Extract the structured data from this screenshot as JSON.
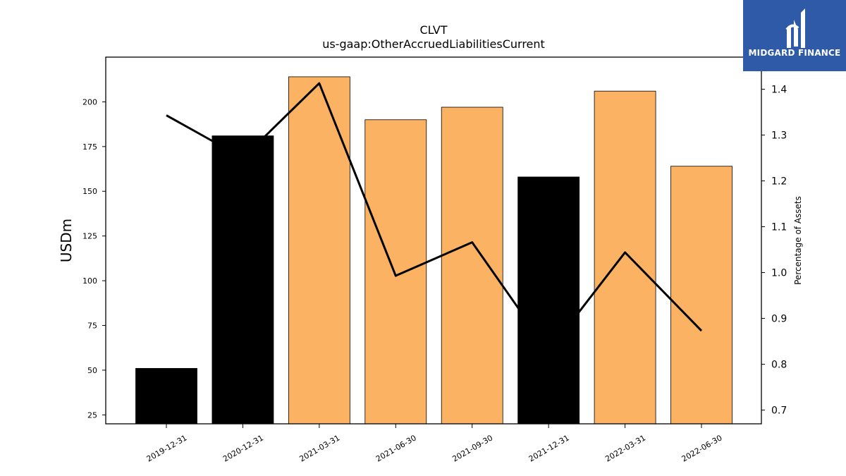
{
  "chart_data": {
    "type": "bar",
    "title": "CLVT",
    "subtitle": "us-gaap:OtherAccruedLiabilitiesCurrent",
    "ylabel": "USDm",
    "y2label": "Percentage of Assets",
    "categories": [
      "2019-12-31",
      "2020-12-31",
      "2021-03-31",
      "2021-06-30",
      "2021-09-30",
      "2021-12-31",
      "2022-03-31",
      "2022-06-30"
    ],
    "series": [
      {
        "type": "bar",
        "axis": "left",
        "values": [
          51,
          181,
          214,
          190,
          197,
          158,
          206,
          164
        ],
        "colors": [
          "#000000",
          "#000000",
          "#fbb263",
          "#fbb263",
          "#fbb263",
          "#000000",
          "#fbb263",
          "#fbb263"
        ]
      },
      {
        "type": "line",
        "axis": "right",
        "color": "#000000",
        "values": [
          1.343,
          1.25,
          1.413,
          0.993,
          1.066,
          0.828,
          1.044,
          0.873
        ]
      }
    ],
    "ylim": [
      20,
      225
    ],
    "y2lim": [
      0.67,
      1.47
    ],
    "yticks": [
      25,
      50,
      75,
      100,
      125,
      150,
      175,
      200
    ],
    "y2ticks": [
      0.7,
      0.8,
      0.9,
      1.0,
      1.1,
      1.2,
      1.3,
      1.4
    ],
    "grid": false
  },
  "logo": {
    "text": "MIDGARD FINANCE",
    "color": "#2f5aa8"
  }
}
